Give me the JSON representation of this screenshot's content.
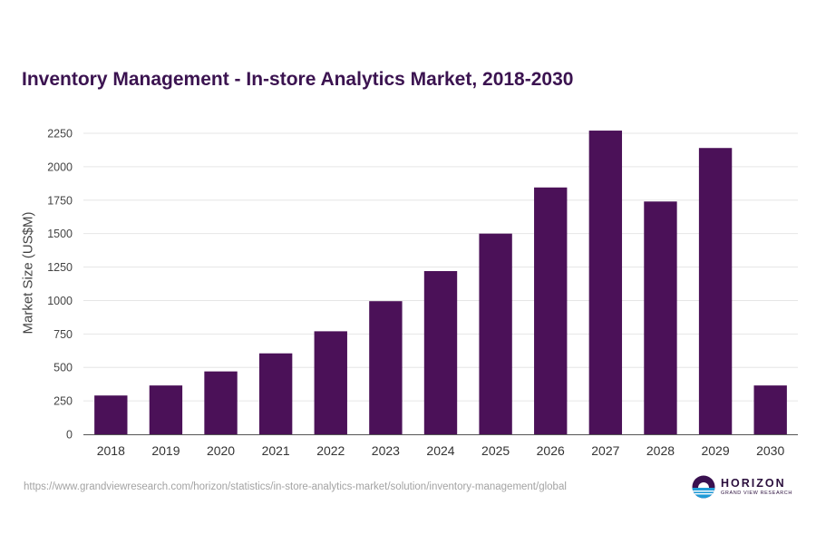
{
  "chart_data": {
    "type": "bar",
    "title": "Inventory Management - In-store Analytics Market, 2018-2030",
    "xlabel": "",
    "ylabel": "Market Size (US$M)",
    "categories": [
      "2018",
      "2019",
      "2020",
      "2021",
      "2022",
      "2023",
      "2024",
      "2025",
      "2026",
      "2027",
      "2028",
      "2029",
      "2030"
    ],
    "values": [
      290,
      365,
      470,
      605,
      770,
      995,
      1220,
      1500,
      1845,
      2270,
      1740,
      2140,
      365
    ],
    "ylim": [
      0,
      2250
    ],
    "yticks": [
      0,
      250,
      500,
      750,
      1000,
      1250,
      1500,
      1750,
      2000,
      2250
    ],
    "grid": true,
    "bar_color": "#4b1158"
  },
  "footer": {
    "url": "https://www.grandviewresearch.com/horizon/statistics/in-store-analytics-market/solution/inventory-management/global"
  },
  "logo": {
    "name": "HORIZON",
    "subtitle": "GRAND VIEW RESEARCH",
    "icon": "horizon-logo-icon"
  }
}
